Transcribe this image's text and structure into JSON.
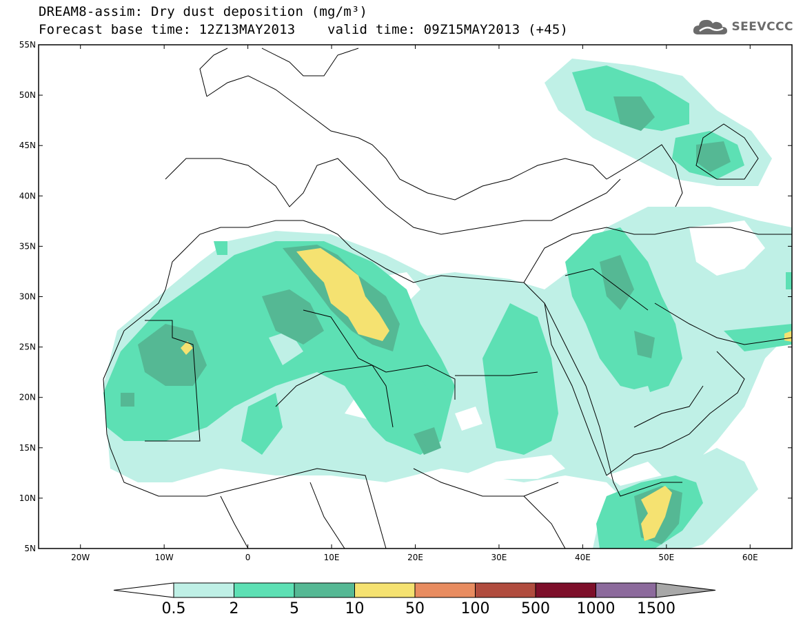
{
  "title": {
    "line1": "DREAM8-assim: Dry dust deposition (mg/m³)",
    "line2": "Forecast base time: 12Z13MAY2013    valid time: 09Z15MAY2013 (+45)"
  },
  "logo": {
    "text": "SEEVCCC",
    "icon": "cloud-icon"
  },
  "map": {
    "lon_range": [
      -25,
      65
    ],
    "lat_range": [
      5,
      55
    ],
    "lat_ticks": [
      {
        "v": 55,
        "label": "55N"
      },
      {
        "v": 50,
        "label": "50N"
      },
      {
        "v": 45,
        "label": "45N"
      },
      {
        "v": 40,
        "label": "40N"
      },
      {
        "v": 35,
        "label": "35N"
      },
      {
        "v": 30,
        "label": "30N"
      },
      {
        "v": 25,
        "label": "25N"
      },
      {
        "v": 20,
        "label": "20N"
      },
      {
        "v": 15,
        "label": "15N"
      },
      {
        "v": 10,
        "label": "10N"
      },
      {
        "v": 5,
        "label": "5N"
      }
    ],
    "lon_ticks": [
      {
        "v": -20,
        "label": "20W"
      },
      {
        "v": -10,
        "label": "10W"
      },
      {
        "v": 0,
        "label": "0"
      },
      {
        "v": 10,
        "label": "10E"
      },
      {
        "v": 20,
        "label": "20E"
      },
      {
        "v": 30,
        "label": "30E"
      },
      {
        "v": 40,
        "label": "40E"
      },
      {
        "v": 50,
        "label": "50E"
      },
      {
        "v": 60,
        "label": "60E"
      }
    ]
  },
  "legend": {
    "labels": [
      "0.5",
      "2",
      "5",
      "10",
      "50",
      "100",
      "500",
      "1000",
      "1500"
    ],
    "colors": [
      "#bff0e6",
      "#5de0b4",
      "#55b894",
      "#f5e271",
      "#e88c60",
      "#b04c3e",
      "#7d0f2a",
      "#8c6a9c"
    ],
    "low_color": "#ffffff",
    "high_color": "#a8a8a8"
  },
  "colors": {
    "land_outline": "#000000",
    "c1": "#bff0e6",
    "c2": "#5de0b4",
    "c3": "#55b894",
    "c4": "#f5e271"
  }
}
